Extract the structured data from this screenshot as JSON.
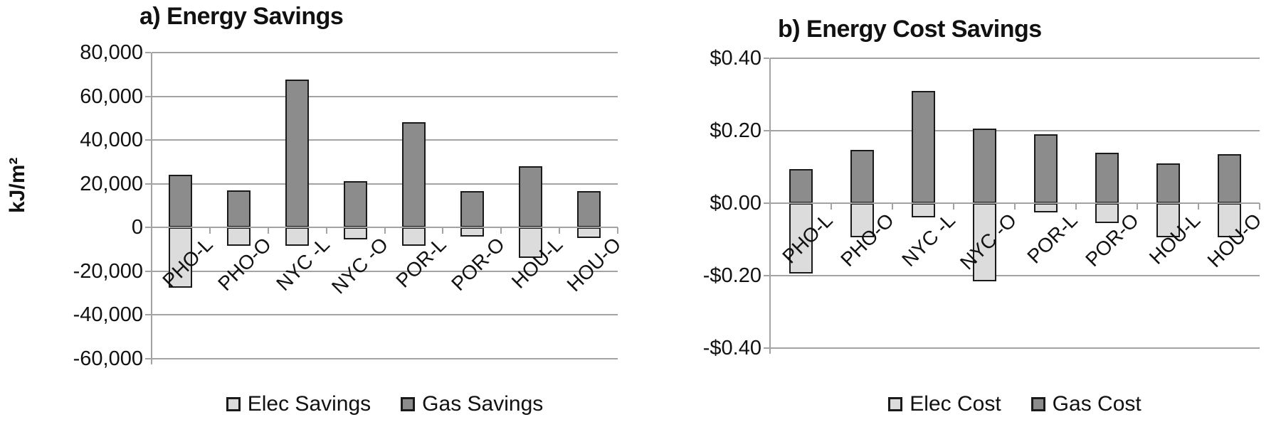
{
  "figure": {
    "background": "#ffffff",
    "text_color": "#111111",
    "gridline_color": "#a3a3a3",
    "bar_border_color": "#1a1a1a"
  },
  "chart_data": [
    {
      "type": "bar",
      "stacked": true,
      "title": "a) Energy Savings",
      "ylabel": "kJ/m²",
      "xlabel": "",
      "categories": [
        "PHO-L",
        "PHO-O",
        "NYC -L",
        "NYC -O",
        "POR-L",
        "POR-O",
        "HOU-L",
        "HOU-O"
      ],
      "series": [
        {
          "name": "Elec Savings",
          "color": "#dcdcdc",
          "values": [
            -27500,
            -8500,
            -8500,
            -5500,
            -8500,
            -4200,
            -14000,
            -5000
          ]
        },
        {
          "name": "Gas Savings",
          "color": "#8c8c8c",
          "values": [
            24000,
            17000,
            67500,
            21000,
            48000,
            16500,
            28000,
            16500
          ]
        }
      ],
      "ylim": [
        -60000,
        80000
      ],
      "ytick_step": 20000,
      "ytick_values": [
        80000,
        60000,
        40000,
        20000,
        0,
        -20000,
        -40000,
        -60000
      ],
      "ytick_labels": [
        "80,000",
        "60,000",
        "40,000",
        "20,000",
        "0",
        "-20,000",
        "-40,000",
        "-60,000"
      ],
      "grid": true,
      "legend_position": "bottom"
    },
    {
      "type": "bar",
      "stacked": true,
      "title": "b) Energy Cost Savings",
      "ylabel": "",
      "xlabel": "",
      "categories": [
        "PHO-L",
        "PHO-O",
        "NYC -L",
        "NYC -O",
        "POR-L",
        "POR-O",
        "HOU-L",
        "HOU-O"
      ],
      "series": [
        {
          "name": "Elec Cost",
          "color": "#dcdcdc",
          "values": [
            -0.195,
            -0.095,
            -0.04,
            -0.215,
            -0.025,
            -0.055,
            -0.095,
            -0.095
          ]
        },
        {
          "name": "Gas Cost",
          "color": "#8c8c8c",
          "values": [
            0.095,
            0.148,
            0.31,
            0.205,
            0.19,
            0.14,
            0.11,
            0.135
          ]
        }
      ],
      "ylim": [
        -0.4,
        0.4
      ],
      "ytick_step": 0.2,
      "ytick_values": [
        0.4,
        0.2,
        0.0,
        -0.2,
        -0.4
      ],
      "ytick_labels": [
        "$0.40",
        "$0.20",
        "$0.00",
        "-$0.20",
        "-$0.40"
      ],
      "grid": true,
      "legend_position": "bottom"
    }
  ]
}
